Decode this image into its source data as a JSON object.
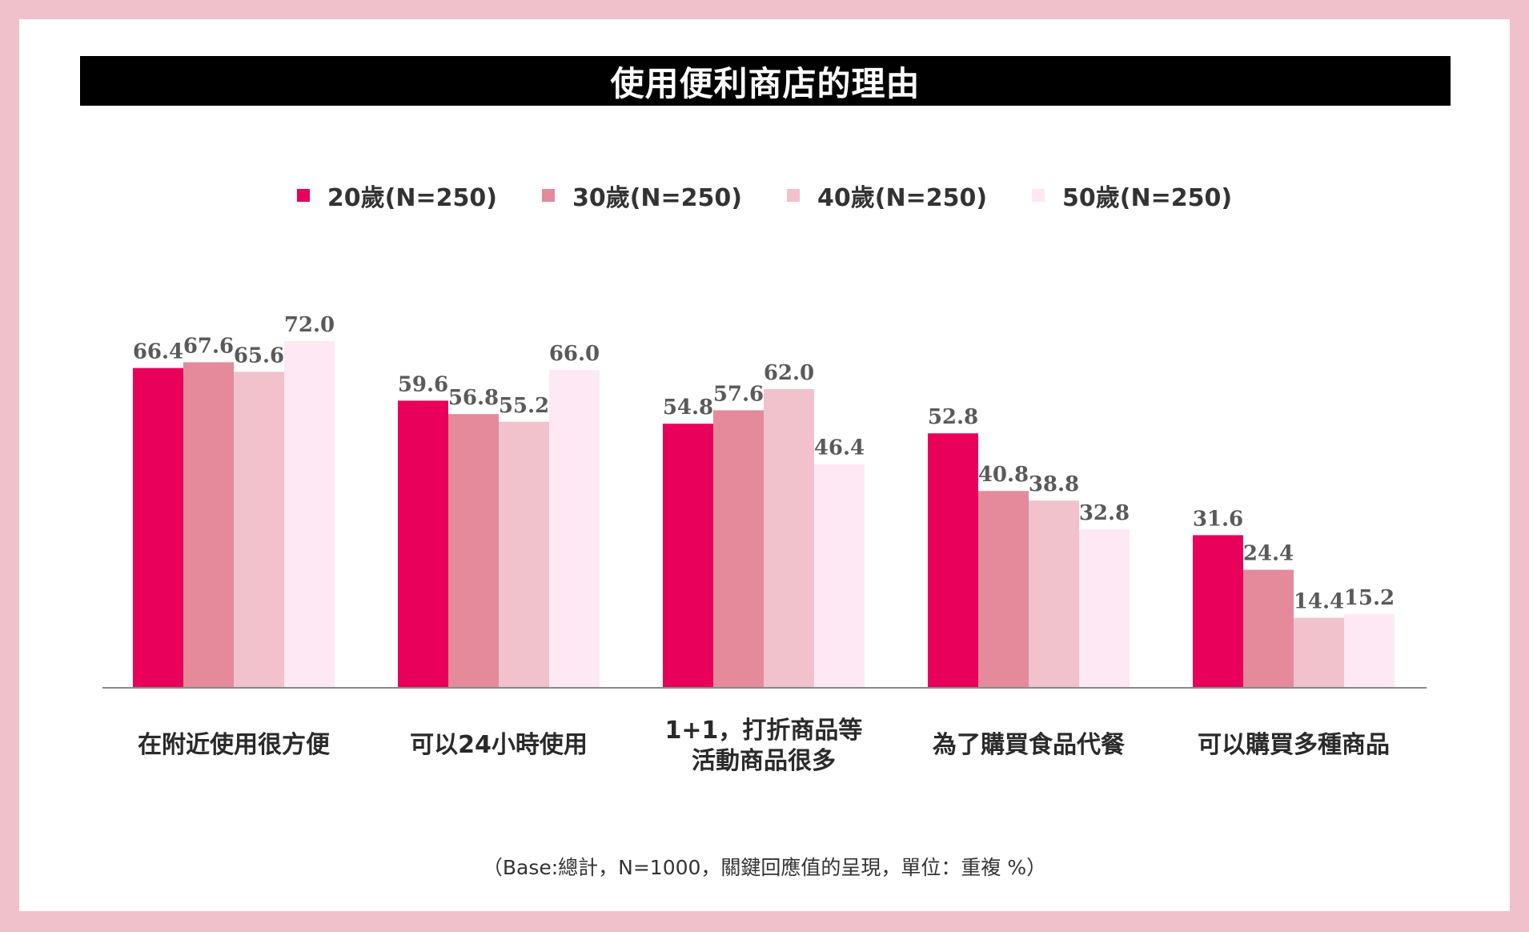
{
  "chart_data": {
    "type": "bar",
    "title": "使用便利商店的理由",
    "categories": [
      "在附近使用很方便",
      "可以24小時使用",
      "1+1，打折商品等\n活動商品很多",
      "為了購買食品代餐",
      "可以購買多種商品"
    ],
    "series": [
      {
        "name": "20歲(N=250)",
        "color": "#e8005a",
        "values": [
          66.4,
          59.6,
          54.8,
          52.8,
          31.6
        ]
      },
      {
        "name": "30歲(N=250)",
        "color": "#e48a9b",
        "values": [
          67.6,
          56.8,
          57.6,
          40.8,
          24.4
        ]
      },
      {
        "name": "40歲(N=250)",
        "color": "#f1c1cc",
        "values": [
          65.6,
          55.2,
          62.0,
          38.8,
          14.4
        ]
      },
      {
        "name": "50歲(N=250)",
        "color": "#fde8f3",
        "values": [
          72.0,
          66.0,
          46.4,
          32.8,
          15.2
        ]
      }
    ],
    "ylim": [
      0,
      80
    ],
    "legend": "top",
    "grid": false,
    "footnote": "（Base:總計，N=1000，關鍵回應值的呈現，單位：重複 %）"
  }
}
